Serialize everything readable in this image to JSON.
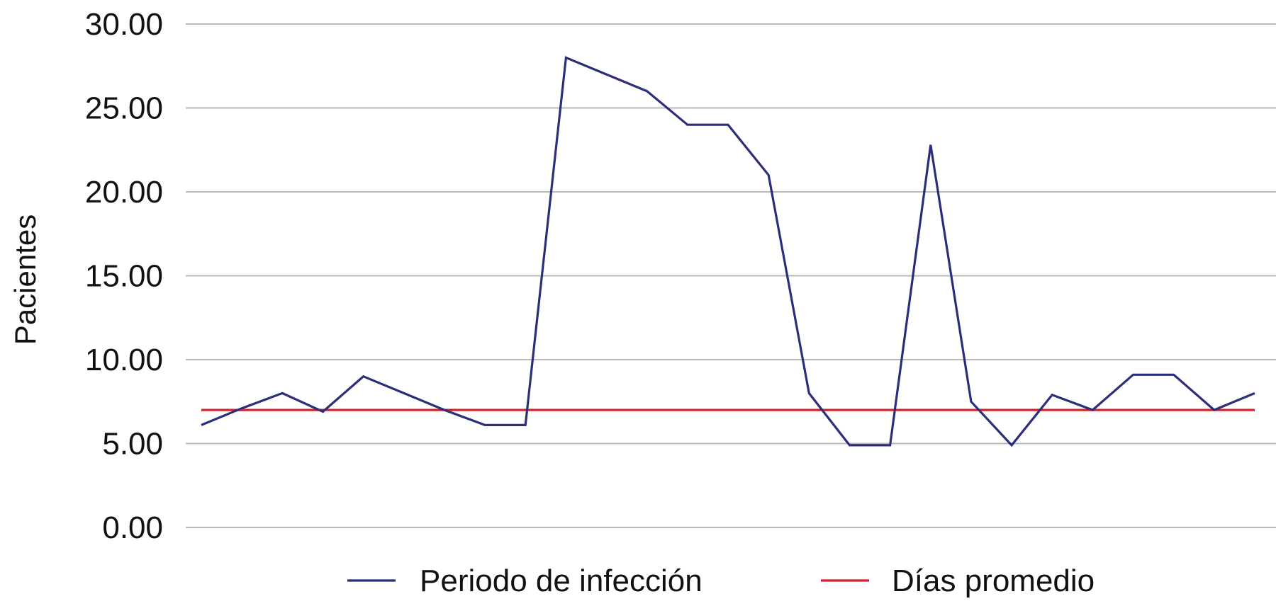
{
  "chart_data": {
    "type": "line",
    "title": "",
    "xlabel": "",
    "ylabel": "Pacientes",
    "ylim": [
      0,
      30
    ],
    "yticks": [
      "0.00",
      "5.00",
      "10.00",
      "15.00",
      "20.00",
      "25.00",
      "30.00"
    ],
    "ytick_values": [
      0,
      5,
      10,
      15,
      20,
      25,
      30
    ],
    "grid": true,
    "legend_position": "bottom",
    "x": [
      1,
      2,
      3,
      4,
      5,
      6,
      7,
      8,
      9,
      10,
      11,
      12,
      13,
      14,
      15,
      16,
      17,
      18,
      19,
      20,
      21,
      22,
      23,
      24,
      25,
      26,
      27
    ],
    "series": [
      {
        "name": "Periodo de infección",
        "color": "#2b2f7a",
        "values": [
          6.1,
          7.1,
          8.0,
          6.9,
          9.0,
          8.0,
          7.0,
          6.1,
          6.1,
          28.0,
          27.0,
          26.0,
          24.0,
          24.0,
          21.0,
          8.0,
          4.9,
          4.9,
          22.8,
          7.5,
          4.9,
          7.9,
          7.0,
          9.1,
          9.1,
          7.0,
          8.0
        ]
      },
      {
        "name": "Días promedio",
        "color": "#d0262b",
        "values": [
          7.0,
          7.0,
          7.0,
          7.0,
          7.0,
          7.0,
          7.0,
          7.0,
          7.0,
          7.0,
          7.0,
          7.0,
          7.0,
          7.0,
          7.0,
          7.0,
          7.0,
          7.0,
          7.0,
          7.0,
          7.0,
          7.0,
          7.0,
          7.0,
          7.0,
          7.0,
          7.0
        ]
      }
    ]
  }
}
